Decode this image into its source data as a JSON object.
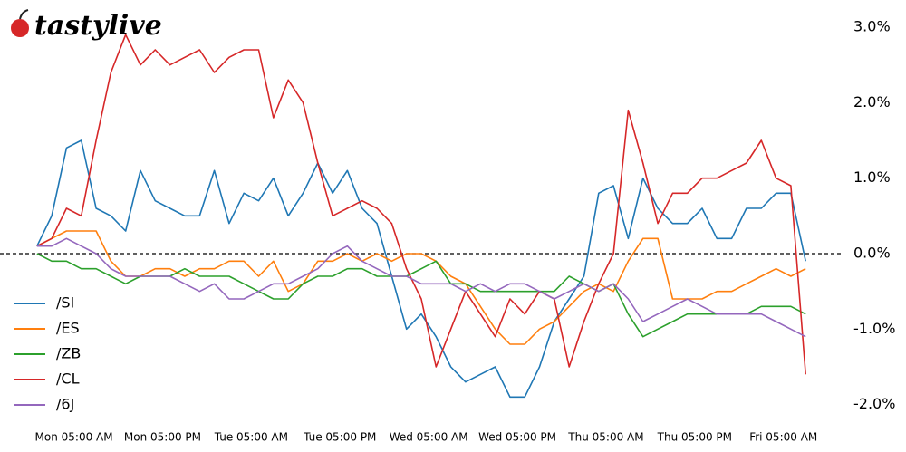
{
  "chart_data": {
    "type": "line",
    "logo": "tastylive",
    "x": [
      -5,
      -3,
      -1,
      1,
      3,
      5,
      7,
      9,
      11,
      13,
      15,
      17,
      19,
      21,
      23,
      25,
      27,
      29,
      31,
      33,
      35,
      37,
      39,
      41,
      43,
      45,
      47,
      49,
      51,
      53,
      55,
      57,
      59,
      61,
      63,
      65,
      67,
      69,
      71,
      73,
      75,
      77,
      79,
      81,
      83,
      85,
      87,
      89,
      91,
      93,
      95,
      97,
      99
    ],
    "xlim": [
      -10,
      104
    ],
    "xticks": [
      {
        "value": 0,
        "label": "Mon 05:00 AM"
      },
      {
        "value": 12,
        "label": "Mon 05:00 PM"
      },
      {
        "value": 24,
        "label": "Tue 05:00 AM"
      },
      {
        "value": 36,
        "label": "Tue 05:00 PM"
      },
      {
        "value": 48,
        "label": "Wed 05:00 AM"
      },
      {
        "value": 60,
        "label": "Wed 05:00 PM"
      },
      {
        "value": 72,
        "label": "Thu 05:00 AM"
      },
      {
        "value": 84,
        "label": "Thu 05:00 PM"
      },
      {
        "value": 96,
        "label": "Fri 05:00 AM"
      }
    ],
    "ylim": [
      -2.16,
      3.36
    ],
    "yticks": [
      {
        "value": 3,
        "label": "3.0%"
      },
      {
        "value": 2,
        "label": "2.0%"
      },
      {
        "value": 1,
        "label": "1.0%"
      },
      {
        "value": 0,
        "label": "0.0%"
      },
      {
        "value": -1,
        "label": "-1.0%"
      },
      {
        "value": -2,
        "label": "-2.0%"
      }
    ],
    "zero_line": true,
    "series": [
      {
        "name": "/SI",
        "color": "#1f77b4",
        "values": [
          0.1,
          0.5,
          1.4,
          1.5,
          0.6,
          0.5,
          0.3,
          1.1,
          0.7,
          0.6,
          0.5,
          0.5,
          1.1,
          0.4,
          0.8,
          0.7,
          1.0,
          0.5,
          0.8,
          1.2,
          0.8,
          1.1,
          0.6,
          0.4,
          -0.3,
          -1.0,
          -0.8,
          -1.1,
          -1.5,
          -1.7,
          -1.6,
          -1.5,
          -1.9,
          -1.9,
          -1.5,
          -0.9,
          -0.6,
          -0.3,
          0.8,
          0.9,
          0.2,
          1.0,
          0.6,
          0.4,
          0.4,
          0.6,
          0.2,
          0.2,
          0.6,
          0.6,
          0.8,
          0.8,
          -0.1
        ]
      },
      {
        "name": "/ES",
        "color": "#ff7f0e",
        "values": [
          0.1,
          0.2,
          0.3,
          0.3,
          0.3,
          -0.1,
          -0.3,
          -0.3,
          -0.2,
          -0.2,
          -0.3,
          -0.2,
          -0.2,
          -0.1,
          -0.1,
          -0.3,
          -0.1,
          -0.5,
          -0.4,
          -0.1,
          -0.1,
          0.0,
          -0.1,
          0.0,
          -0.1,
          0.0,
          0.0,
          -0.1,
          -0.3,
          -0.4,
          -0.7,
          -1.0,
          -1.2,
          -1.2,
          -1.0,
          -0.9,
          -0.7,
          -0.5,
          -0.4,
          -0.5,
          -0.1,
          0.2,
          0.2,
          -0.6,
          -0.6,
          -0.6,
          -0.5,
          -0.5,
          -0.4,
          -0.3,
          -0.2,
          -0.3,
          -0.2
        ]
      },
      {
        "name": "/ZB",
        "color": "#2ca02c",
        "values": [
          0.0,
          -0.1,
          -0.1,
          -0.2,
          -0.2,
          -0.3,
          -0.4,
          -0.3,
          -0.3,
          -0.3,
          -0.2,
          -0.3,
          -0.3,
          -0.3,
          -0.4,
          -0.5,
          -0.6,
          -0.6,
          -0.4,
          -0.3,
          -0.3,
          -0.2,
          -0.2,
          -0.3,
          -0.3,
          -0.3,
          -0.2,
          -0.1,
          -0.4,
          -0.4,
          -0.5,
          -0.5,
          -0.5,
          -0.5,
          -0.5,
          -0.5,
          -0.3,
          -0.4,
          -0.5,
          -0.4,
          -0.8,
          -1.1,
          -1.0,
          -0.9,
          -0.8,
          -0.8,
          -0.8,
          -0.8,
          -0.8,
          -0.7,
          -0.7,
          -0.7,
          -0.8
        ]
      },
      {
        "name": "/CL",
        "color": "#d62728",
        "values": [
          0.1,
          0.2,
          0.6,
          0.5,
          1.5,
          2.4,
          2.9,
          2.5,
          2.7,
          2.5,
          2.6,
          2.7,
          2.4,
          2.6,
          2.7,
          2.7,
          1.8,
          2.3,
          2.0,
          1.2,
          0.5,
          0.6,
          0.7,
          0.6,
          0.4,
          -0.2,
          -0.6,
          -1.5,
          -1.0,
          -0.5,
          -0.8,
          -1.1,
          -0.6,
          -0.8,
          -0.5,
          -0.6,
          -1.5,
          -0.9,
          -0.4,
          0.0,
          1.9,
          1.2,
          0.4,
          0.8,
          0.8,
          1.0,
          1.0,
          1.1,
          1.2,
          1.5,
          1.0,
          0.9,
          -1.6
        ]
      },
      {
        "name": "/6J",
        "color": "#9467bd",
        "values": [
          0.1,
          0.1,
          0.2,
          0.1,
          0.0,
          -0.2,
          -0.3,
          -0.3,
          -0.3,
          -0.3,
          -0.4,
          -0.5,
          -0.4,
          -0.6,
          -0.6,
          -0.5,
          -0.4,
          -0.4,
          -0.3,
          -0.2,
          0.0,
          0.1,
          -0.1,
          -0.2,
          -0.3,
          -0.3,
          -0.4,
          -0.4,
          -0.4,
          -0.5,
          -0.4,
          -0.5,
          -0.4,
          -0.4,
          -0.5,
          -0.6,
          -0.5,
          -0.4,
          -0.5,
          -0.4,
          -0.6,
          -0.9,
          -0.8,
          -0.7,
          -0.6,
          -0.7,
          -0.8,
          -0.8,
          -0.8,
          -0.8,
          -0.9,
          -1.0,
          -1.1
        ]
      }
    ]
  }
}
